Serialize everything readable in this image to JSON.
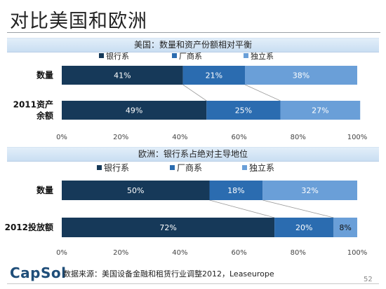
{
  "slide": {
    "title": "对比美国和欧洲",
    "page_number": "52"
  },
  "colors": {
    "bank": "#163959",
    "manufacturer": "#2b6cb0",
    "independent": "#6a9fd8"
  },
  "footer": {
    "logo": "CapSol",
    "source": "数据来源：美国设备金融和租赁行业调整2012，Leaseurope"
  },
  "chart_data": [
    {
      "type": "bar",
      "orientation": "horizontal",
      "stacked": "percent",
      "title": "美国：数量和资产份额相对平衡",
      "legend_position": "top",
      "categories": [
        "数量",
        "2011资产余额"
      ],
      "series": [
        {
          "name": "银行系",
          "values": [
            41,
            49
          ]
        },
        {
          "name": "厂商系",
          "values": [
            21,
            25
          ]
        },
        {
          "name": "独立系",
          "values": [
            38,
            27
          ]
        }
      ],
      "data_labels": [
        [
          "41%",
          "21%",
          "38%"
        ],
        [
          "49%",
          "25%",
          "27%"
        ]
      ],
      "xlim": [
        0,
        100
      ],
      "xticks": [
        "0%",
        "20%",
        "40%",
        "60%",
        "80%",
        "100%"
      ],
      "grid": false
    },
    {
      "type": "bar",
      "orientation": "horizontal",
      "stacked": "percent",
      "title": "欧洲：银行系占绝对主导地位",
      "legend_position": "top",
      "categories": [
        "数量",
        "2012投放额"
      ],
      "series": [
        {
          "name": "银行系",
          "values": [
            50,
            72
          ]
        },
        {
          "name": "厂商系",
          "values": [
            18,
            20
          ]
        },
        {
          "name": "独立系",
          "values": [
            32,
            8
          ]
        }
      ],
      "data_labels": [
        [
          "50%",
          "18%",
          "32%"
        ],
        [
          "72%",
          "20%",
          "8%"
        ]
      ],
      "xlim": [
        0,
        100
      ],
      "xticks": [
        "0%",
        "20%",
        "40%",
        "60%",
        "80%",
        "100%"
      ],
      "grid": false
    }
  ]
}
